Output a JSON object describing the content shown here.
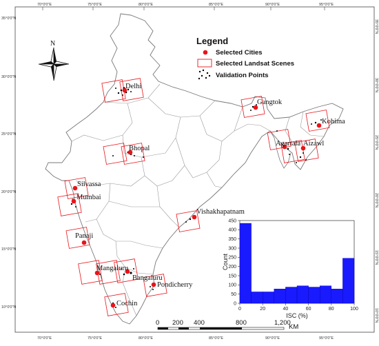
{
  "map": {
    "lon_ticks": [
      "70°0'0\"E",
      "75°0'0\"E",
      "80°0'0\"E",
      "85°0'0\"E",
      "90°0'0\"E",
      "95°0'0\"E"
    ],
    "lat_ticks": [
      "35°0'0\"N",
      "30°0'0\"N",
      "25°0'0\"N",
      "20°0'0\"N",
      "15°0'0\"N",
      "10°0'0\"N"
    ],
    "north_label": "N"
  },
  "legend": {
    "title": "Legend",
    "items": [
      {
        "label": "Selected Cities",
        "symbol": "red-dot-icon",
        "color": "#e8141b"
      },
      {
        "label": "Selected Landsat Scenes",
        "symbol": "red-rectangle-icon",
        "color": "#e8141b"
      },
      {
        "label": "Validation Points",
        "symbol": "black-dots-icon",
        "color": "#000000"
      }
    ]
  },
  "cities": [
    {
      "name": "Delhi"
    },
    {
      "name": "Gangtok"
    },
    {
      "name": "Kohima"
    },
    {
      "name": "Bhopal"
    },
    {
      "name": "Agartala"
    },
    {
      "name": "Aizawl"
    },
    {
      "name": "Silvassa"
    },
    {
      "name": "Mumbai"
    },
    {
      "name": "Vishakhapatnam"
    },
    {
      "name": "Panaji"
    },
    {
      "name": "Mangaluru"
    },
    {
      "name": "Bangaluru"
    },
    {
      "name": "Pondicherry"
    },
    {
      "name": "Cochin"
    }
  ],
  "scale_bar": {
    "labels": [
      "0",
      "200",
      "400",
      "800",
      "1,200"
    ],
    "unit": "KM"
  },
  "chart_data": {
    "type": "bar",
    "title": "",
    "xlabel": "ISC (%)",
    "ylabel": "Count",
    "bin_edges": [
      0,
      10,
      20,
      30,
      40,
      50,
      60,
      70,
      80,
      90,
      100
    ],
    "values": [
      435,
      62,
      62,
      78,
      88,
      95,
      88,
      95,
      78,
      245
    ],
    "xlim": [
      0,
      100
    ],
    "ylim": [
      0,
      450
    ],
    "xticks": [
      0,
      20,
      40,
      60,
      80,
      100
    ],
    "yticks": [
      0,
      50,
      100,
      150,
      200,
      250,
      300,
      350,
      400,
      450
    ],
    "bar_color": "#1a1aff"
  }
}
